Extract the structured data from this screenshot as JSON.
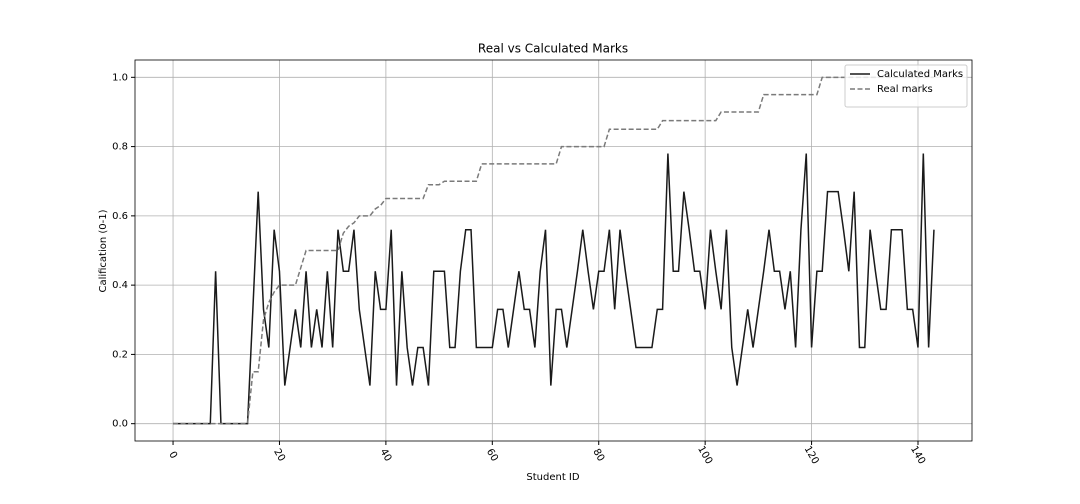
{
  "chart_data": {
    "type": "line",
    "title": "Real vs Calculated Marks",
    "x_label": "Student ID",
    "y_label": "Calification (0-1)",
    "x": [
      0,
      1,
      2,
      3,
      4,
      5,
      6,
      7,
      8,
      9,
      10,
      11,
      12,
      13,
      14,
      15,
      16,
      17,
      18,
      19,
      20,
      21,
      22,
      23,
      24,
      25,
      26,
      27,
      28,
      29,
      30,
      31,
      32,
      33,
      34,
      35,
      36,
      37,
      38,
      39,
      40,
      41,
      42,
      43,
      44,
      45,
      46,
      47,
      48,
      49,
      50,
      51,
      52,
      53,
      54,
      55,
      56,
      57,
      58,
      59,
      60,
      61,
      62,
      63,
      64,
      65,
      66,
      67,
      68,
      69,
      70,
      71,
      72,
      73,
      74,
      75,
      76,
      77,
      78,
      79,
      80,
      81,
      82,
      83,
      84,
      85,
      86,
      87,
      88,
      89,
      90,
      91,
      92,
      93,
      94,
      95,
      96,
      97,
      98,
      99,
      100,
      101,
      102,
      103,
      104,
      105,
      106,
      107,
      108,
      109,
      110,
      111,
      112,
      113,
      114,
      115,
      116,
      117,
      118,
      119,
      120,
      121,
      122,
      123,
      124,
      125,
      126,
      127,
      128,
      129,
      130,
      131,
      132,
      133,
      134,
      135,
      136,
      137,
      138,
      139,
      140,
      141,
      142,
      143
    ],
    "series": [
      {
        "name": "Calculated Marks",
        "color": "#1a1a1a",
        "dash": false,
        "values": [
          0,
          0,
          0,
          0,
          0,
          0,
          0,
          0,
          0.44,
          0,
          0,
          0,
          0,
          0,
          0,
          0.33,
          0.67,
          0.33,
          0.22,
          0.56,
          0.44,
          0.11,
          0.22,
          0.33,
          0.22,
          0.44,
          0.22,
          0.33,
          0.22,
          0.44,
          0.22,
          0.56,
          0.44,
          0.44,
          0.56,
          0.33,
          0.22,
          0.11,
          0.44,
          0.33,
          0.33,
          0.56,
          0.11,
          0.44,
          0.22,
          0.11,
          0.22,
          0.22,
          0.11,
          0.44,
          0.44,
          0.44,
          0.22,
          0.22,
          0.44,
          0.56,
          0.56,
          0.22,
          0.22,
          0.22,
          0.22,
          0.33,
          0.33,
          0.22,
          0.33,
          0.44,
          0.33,
          0.33,
          0.22,
          0.44,
          0.56,
          0.11,
          0.33,
          0.33,
          0.22,
          0.33,
          0.44,
          0.56,
          0.44,
          0.33,
          0.44,
          0.44,
          0.56,
          0.33,
          0.56,
          0.44,
          0.33,
          0.22,
          0.22,
          0.22,
          0.22,
          0.33,
          0.33,
          0.78,
          0.44,
          0.44,
          0.67,
          0.56,
          0.44,
          0.44,
          0.33,
          0.56,
          0.44,
          0.33,
          0.56,
          0.22,
          0.11,
          0.22,
          0.33,
          0.22,
          0.33,
          0.44,
          0.56,
          0.44,
          0.44,
          0.33,
          0.44,
          0.22,
          0.56,
          0.78,
          0.22,
          0.44,
          0.44,
          0.67,
          0.67,
          0.67,
          0.56,
          0.44,
          0.67,
          0.22,
          0.22,
          0.56,
          0.44,
          0.33,
          0.33,
          0.56,
          0.56,
          0.56,
          0.33,
          0.33,
          0.22,
          0.78,
          0.22,
          0.56
        ]
      },
      {
        "name": "Real marks",
        "color": "#7a7a7a",
        "dash": true,
        "values": [
          0,
          0,
          0,
          0,
          0,
          0,
          0,
          0,
          0,
          0,
          0,
          0,
          0,
          0,
          0,
          0.15,
          0.15,
          0.3,
          0.35,
          0.38,
          0.4,
          0.4,
          0.4,
          0.4,
          0.45,
          0.5,
          0.5,
          0.5,
          0.5,
          0.5,
          0.5,
          0.5,
          0.55,
          0.57,
          0.58,
          0.6,
          0.6,
          0.6,
          0.62,
          0.63,
          0.65,
          0.65,
          0.65,
          0.65,
          0.65,
          0.65,
          0.65,
          0.65,
          0.69,
          0.69,
          0.69,
          0.7,
          0.7,
          0.7,
          0.7,
          0.7,
          0.7,
          0.7,
          0.75,
          0.75,
          0.75,
          0.75,
          0.75,
          0.75,
          0.75,
          0.75,
          0.75,
          0.75,
          0.75,
          0.75,
          0.75,
          0.75,
          0.75,
          0.8,
          0.8,
          0.8,
          0.8,
          0.8,
          0.8,
          0.8,
          0.8,
          0.8,
          0.85,
          0.85,
          0.85,
          0.85,
          0.85,
          0.85,
          0.85,
          0.85,
          0.85,
          0.85,
          0.875,
          0.875,
          0.875,
          0.875,
          0.875,
          0.875,
          0.875,
          0.875,
          0.875,
          0.875,
          0.875,
          0.9,
          0.9,
          0.9,
          0.9,
          0.9,
          0.9,
          0.9,
          0.9,
          0.95,
          0.95,
          0.95,
          0.95,
          0.95,
          0.95,
          0.95,
          0.95,
          0.95,
          0.95,
          0.95,
          1,
          1,
          1,
          1,
          1,
          1,
          1,
          1,
          1,
          1,
          1,
          1,
          1,
          1,
          1,
          1,
          1,
          1,
          1,
          1,
          1,
          1
        ]
      }
    ],
    "xlim": [
      -7.15,
      150.15
    ],
    "xticks": [
      0,
      20,
      40,
      60,
      80,
      100,
      120,
      140
    ],
    "ylim": [
      -0.05,
      1.05
    ],
    "yticks": [
      {
        "value": 0,
        "label": "0.0"
      },
      0.2,
      0.4,
      0.6,
      0.8,
      {
        "value": 1,
        "label": "1.0"
      }
    ],
    "grid": true,
    "legend": "upper-right"
  }
}
